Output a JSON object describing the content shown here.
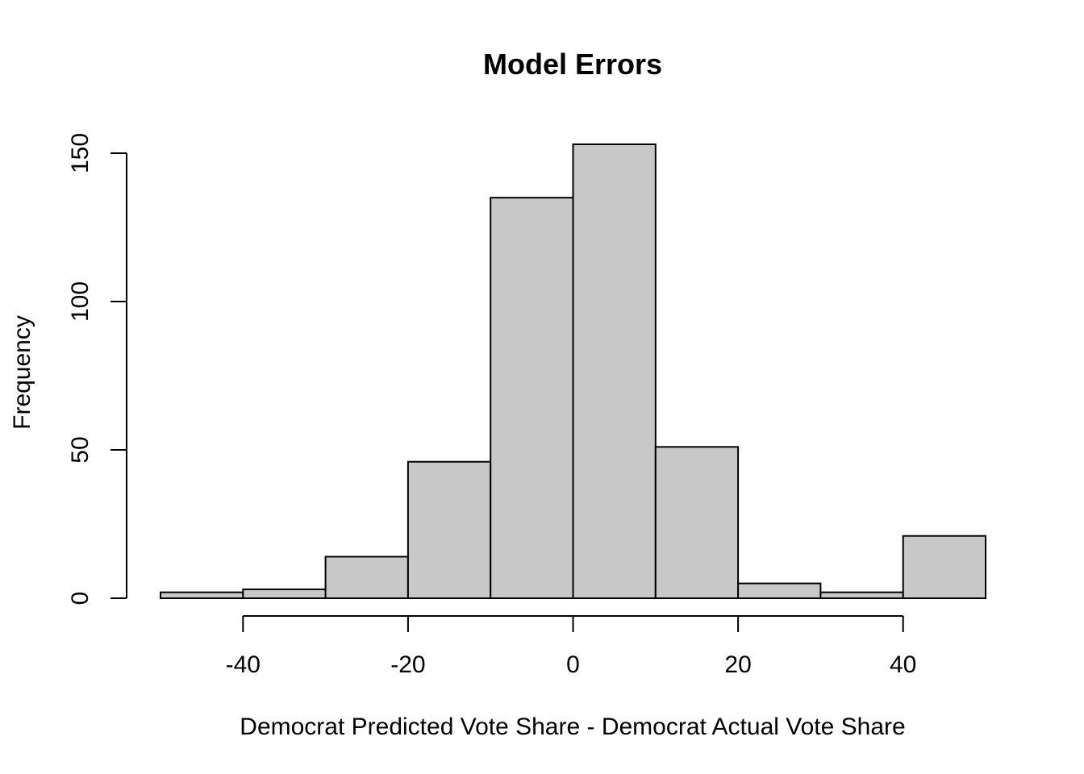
{
  "chart_data": {
    "type": "bar",
    "title": "Model Errors",
    "xlabel": "Democrat Predicted Vote Share - Democrat Actual Vote Share",
    "ylabel": "Frequency",
    "bins": [
      {
        "x0": -50,
        "x1": -40,
        "count": 2
      },
      {
        "x0": -40,
        "x1": -30,
        "count": 3
      },
      {
        "x0": -30,
        "x1": -20,
        "count": 14
      },
      {
        "x0": -20,
        "x1": -10,
        "count": 46
      },
      {
        "x0": -10,
        "x1": 0,
        "count": 135
      },
      {
        "x0": 0,
        "x1": 10,
        "count": 153
      },
      {
        "x0": 10,
        "x1": 20,
        "count": 51
      },
      {
        "x0": 20,
        "x1": 30,
        "count": 5
      },
      {
        "x0": 30,
        "x1": 40,
        "count": 2
      },
      {
        "x0": 40,
        "x1": 50,
        "count": 21
      }
    ],
    "xlim": [
      -50,
      50
    ],
    "ylim": [
      0,
      153
    ],
    "x_ticks": [
      -40,
      -20,
      0,
      20,
      40
    ],
    "y_ticks": [
      0,
      50,
      100,
      150
    ],
    "bar_color": "#c8c8c8",
    "grid": false
  }
}
